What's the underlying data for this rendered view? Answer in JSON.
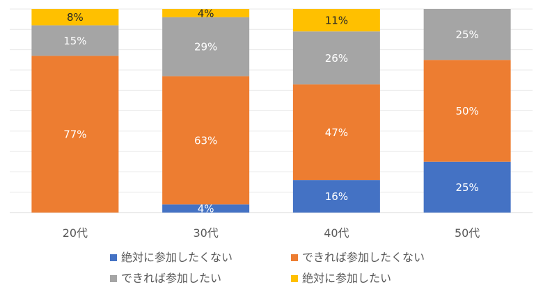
{
  "chart_data": {
    "type": "bar",
    "stacked": true,
    "normalized_percent": true,
    "categories": [
      "20代",
      "30代",
      "40代",
      "50代"
    ],
    "series": [
      {
        "name": "絶対に参加したくない",
        "color": "#4472C4",
        "label_color": "#FFFFFF",
        "values": [
          0,
          4,
          16,
          25
        ],
        "labels": [
          "",
          "4%",
          "16%",
          "25%"
        ]
      },
      {
        "name": "できれば参加したくない",
        "color": "#ED7D31",
        "label_color": "#FFFFFF",
        "values": [
          77,
          63,
          47,
          50
        ],
        "labels": [
          "77%",
          "63%",
          "47%",
          "50%"
        ]
      },
      {
        "name": "できれば参加したい",
        "color": "#A5A5A5",
        "label_color": "#FFFFFF",
        "values": [
          15,
          29,
          26,
          25
        ],
        "labels": [
          "15%",
          "29%",
          "26%",
          "25%"
        ]
      },
      {
        "name": "絶対に参加したい",
        "color": "#FFC000",
        "label_color": "#262626",
        "values": [
          8,
          4,
          11,
          0
        ],
        "labels": [
          "8%",
          "4%",
          "11%",
          ""
        ]
      }
    ],
    "ylim": [
      0,
      100
    ],
    "grid": true,
    "legend_position": "bottom"
  }
}
